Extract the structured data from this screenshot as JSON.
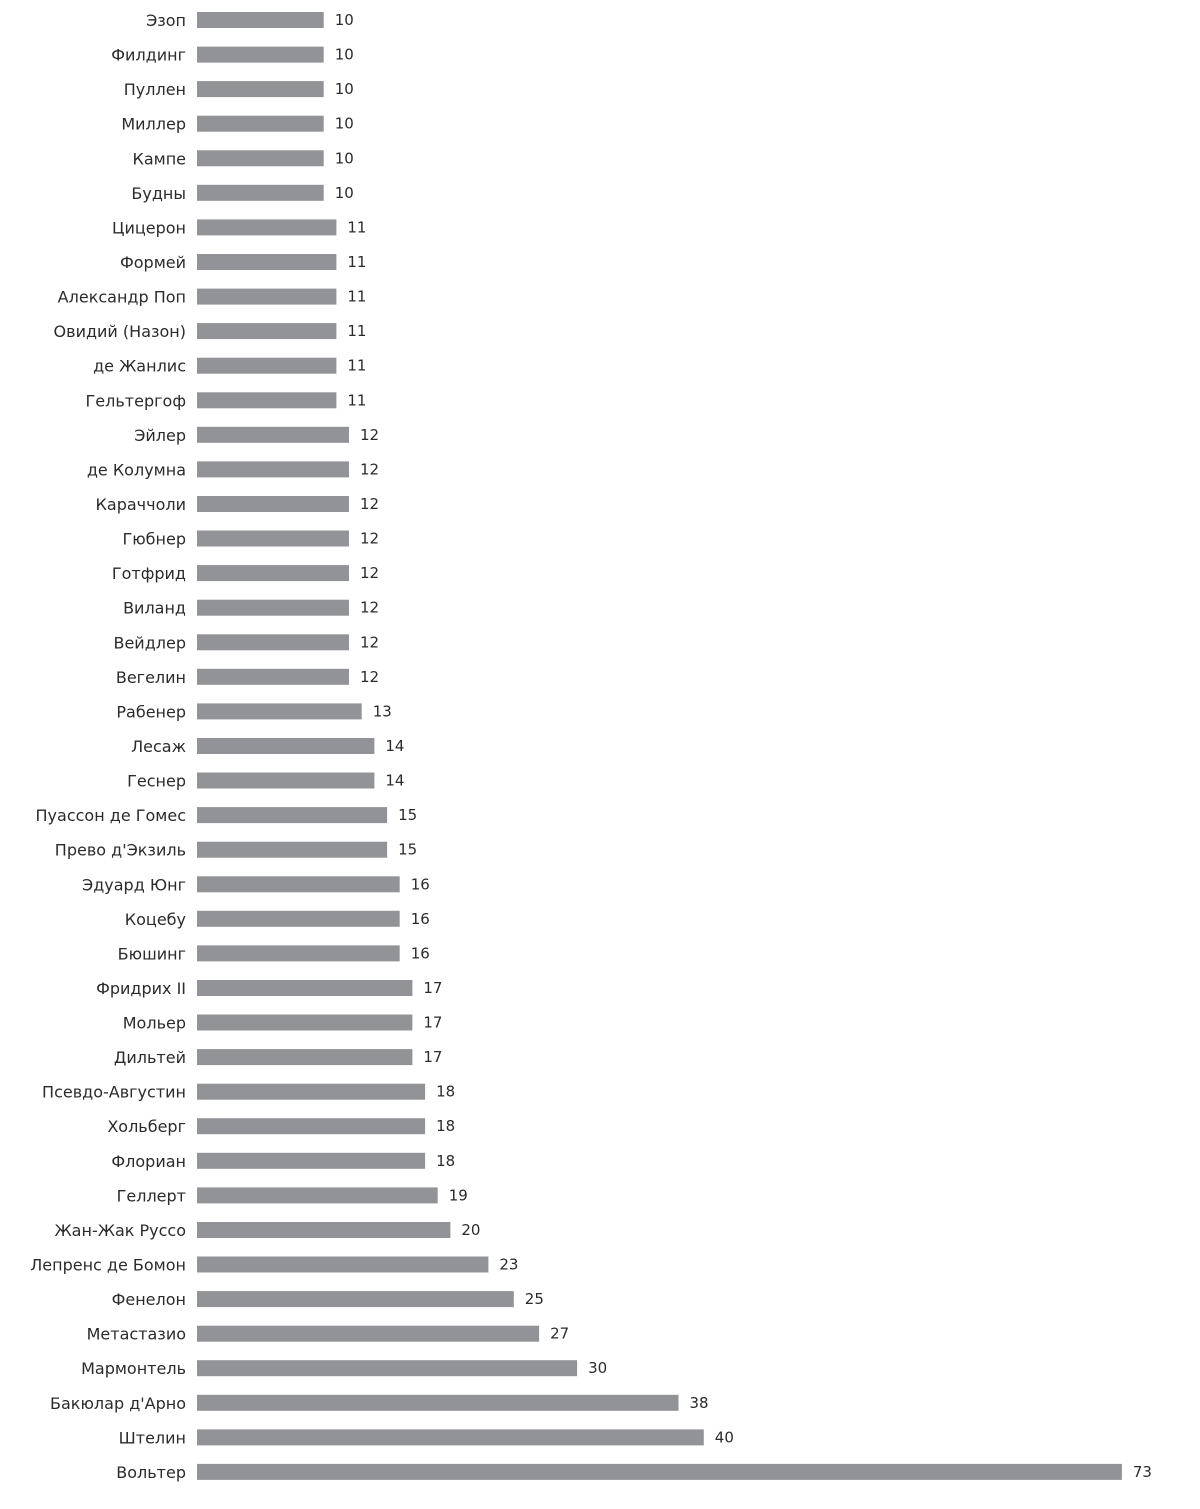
{
  "chart_data": {
    "type": "bar",
    "orientation": "horizontal",
    "categories": [
      "Эзоп",
      "Филдинг",
      "Пуллен",
      "Миллер",
      "Кампе",
      "Будны",
      "Цицерон",
      "Формей",
      "Александр Поп",
      "Овидий (Назон)",
      "де Жанлис",
      "Гельтергоф",
      "Эйлер",
      "де Колумна",
      "Караччоли",
      "Гюбнер",
      "Готфрид",
      "Виланд",
      "Вейдлер",
      "Вегелин",
      "Рабенер",
      "Лесаж",
      "Геснер",
      "Пуассон де Гомес",
      "Прево д'Экзиль",
      "Эдуард Юнг",
      "Коцебу",
      "Бюшинг",
      "Фридрих II",
      "Мольер",
      "Дильтей",
      "Псевдо-Августин",
      "Хольберг",
      "Флориан",
      "Геллерт",
      "Жан-Жак Руссо",
      "Лепренс де Бомон",
      "Фенелон",
      "Метастазио",
      "Мармонтель",
      "Бакюлар д'Арно",
      "Штелин",
      "Вольтер"
    ],
    "values": [
      10,
      10,
      10,
      10,
      10,
      10,
      11,
      11,
      11,
      11,
      11,
      11,
      12,
      12,
      12,
      12,
      12,
      12,
      12,
      12,
      13,
      14,
      14,
      15,
      15,
      16,
      16,
      16,
      17,
      17,
      17,
      18,
      18,
      18,
      19,
      20,
      23,
      25,
      27,
      30,
      38,
      40,
      73
    ],
    "title": "",
    "xlabel": "",
    "ylabel": "",
    "grid": false,
    "data_labels": true,
    "bar_color": "#929397"
  }
}
